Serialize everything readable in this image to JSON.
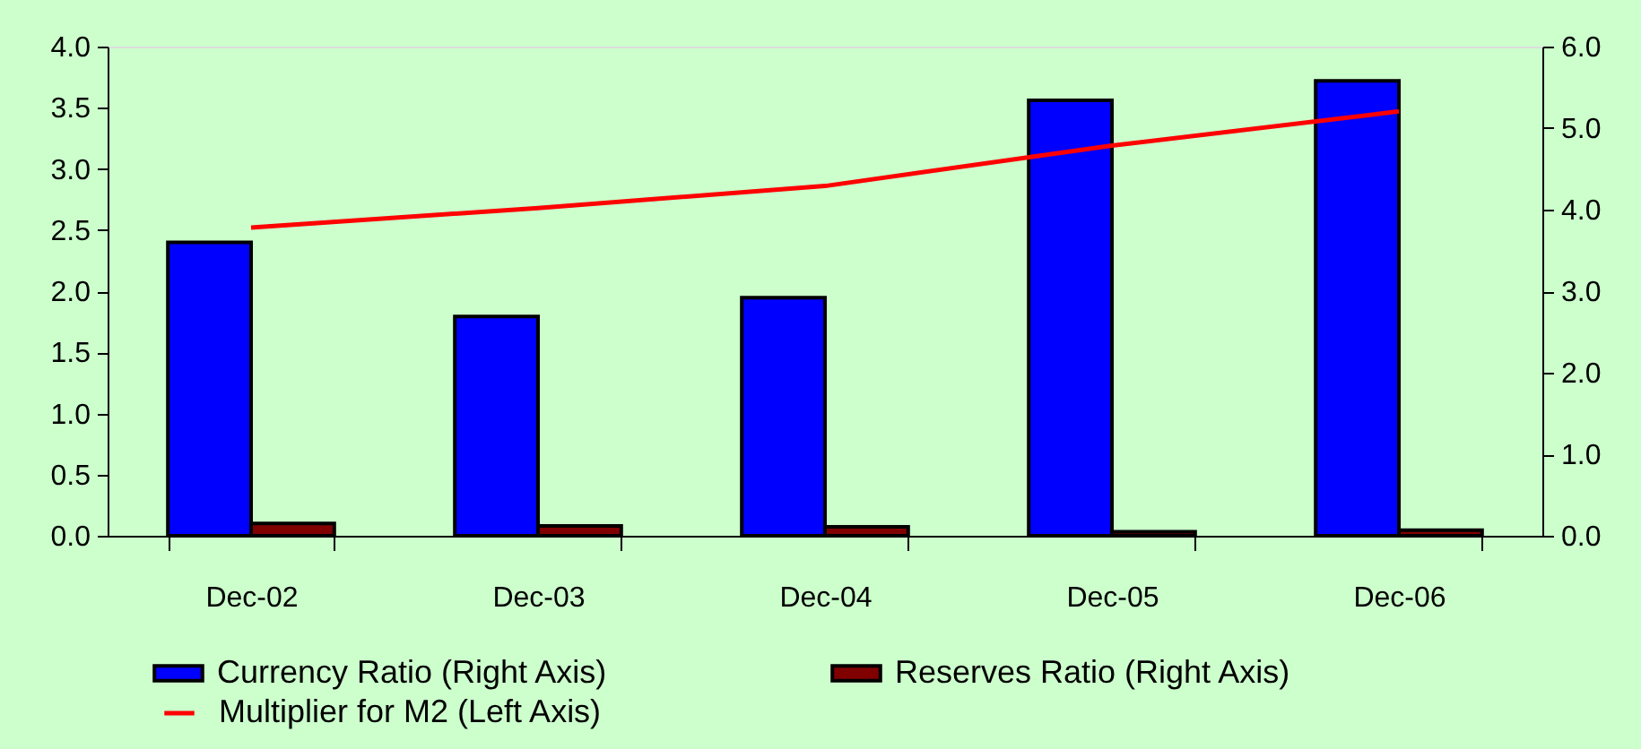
{
  "chart_data": {
    "type": "bar",
    "categories": [
      "Dec-02",
      "Dec-03",
      "Dec-04",
      "Dec-05",
      "Dec-06"
    ],
    "series": [
      {
        "name": "Currency Ratio (Right Axis)",
        "color": "#0000ff",
        "axis": "y2",
        "values": [
          3.6,
          2.69,
          2.92,
          5.34,
          5.58
        ]
      },
      {
        "name": "Reserves Ratio (Right Axis)",
        "color": "#800000",
        "axis": "y2",
        "values": [
          0.15,
          0.12,
          0.11,
          0.05,
          0.07
        ]
      },
      {
        "name": "Multiplier for M2 (Left Axis)",
        "color": "#ff0000",
        "type": "line",
        "axis": "y",
        "values": [
          2.52,
          2.68,
          2.86,
          3.19,
          3.47
        ]
      }
    ],
    "ylim": [
      0,
      4
    ],
    "yticks": [
      {
        "value": 0,
        "label": "0.0"
      },
      0.5,
      {
        "value": 1,
        "label": "1.0"
      },
      1.5,
      {
        "value": 2,
        "label": "2.0"
      },
      2.5,
      {
        "value": 3,
        "label": "3.0"
      },
      3.5,
      {
        "value": 4,
        "label": "4.0"
      }
    ],
    "y2lim": [
      0,
      6
    ],
    "y2ticks": [
      {
        "value": 0,
        "label": "0.0"
      },
      {
        "value": 1,
        "label": "1.0"
      },
      {
        "value": 2,
        "label": "2.0"
      },
      {
        "value": 3,
        "label": "3.0"
      },
      {
        "value": 4,
        "label": "4.0"
      },
      {
        "value": 5,
        "label": "5.0"
      },
      {
        "value": 6,
        "label": "6.0"
      }
    ],
    "grid": false,
    "legend": "bottom"
  }
}
